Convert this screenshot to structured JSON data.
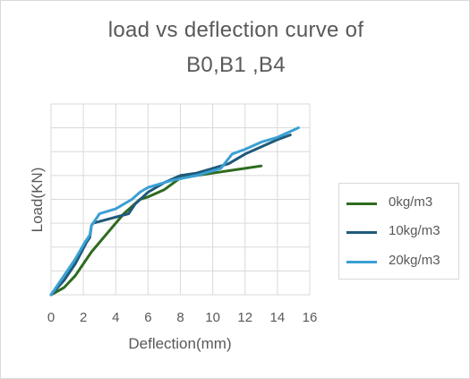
{
  "chart_data": {
    "type": "line",
    "title_line1": "load vs deflection curve of",
    "title_line2": "B0,B1 ,B4",
    "xlabel": "Deflection(mm)",
    "ylabel": "Load(KN)",
    "xlim": [
      0,
      16
    ],
    "x_ticks": [
      "0",
      "2",
      "4",
      "6",
      "8",
      "10",
      "12",
      "14",
      "16"
    ],
    "ylim": [
      0,
      80
    ],
    "y_grid_step": 10,
    "y_tick_labels_shown": false,
    "grid": true,
    "legend_position": "right",
    "series": [
      {
        "name": "0kg/m3",
        "color": "#2e6b1f",
        "points": [
          [
            0,
            0
          ],
          [
            0.8,
            3
          ],
          [
            1.5,
            8
          ],
          [
            2.5,
            18
          ],
          [
            3.5,
            26
          ],
          [
            4.5,
            34
          ],
          [
            5.5,
            40
          ],
          [
            6,
            41
          ],
          [
            7,
            44
          ],
          [
            8,
            49
          ],
          [
            9,
            50
          ],
          [
            10,
            51
          ],
          [
            11,
            52
          ],
          [
            12,
            53
          ],
          [
            13,
            54
          ]
        ]
      },
      {
        "name": "10kg/m3",
        "color": "#1f5a7a",
        "points": [
          [
            0,
            0
          ],
          [
            0.8,
            6
          ],
          [
            1.5,
            13
          ],
          [
            2.2,
            22
          ],
          [
            2.4,
            24
          ],
          [
            2.5,
            29
          ],
          [
            2.6,
            30
          ],
          [
            4.8,
            34
          ],
          [
            5.2,
            38
          ],
          [
            6,
            43
          ],
          [
            7,
            47
          ],
          [
            8,
            50
          ],
          [
            9,
            51
          ],
          [
            10,
            53
          ],
          [
            11,
            55
          ],
          [
            12,
            59
          ],
          [
            13,
            62
          ],
          [
            14,
            65
          ],
          [
            14.8,
            67
          ]
        ]
      },
      {
        "name": "20kg/m3",
        "color": "#3aa0d4",
        "points": [
          [
            0,
            0
          ],
          [
            0.8,
            8
          ],
          [
            1.5,
            15
          ],
          [
            2.1,
            22
          ],
          [
            2.4,
            25
          ],
          [
            2.5,
            29
          ],
          [
            3,
            34
          ],
          [
            4,
            36
          ],
          [
            5,
            40
          ],
          [
            5.5,
            43
          ],
          [
            6,
            45
          ],
          [
            7.5,
            48
          ],
          [
            9,
            50
          ],
          [
            10.5,
            53
          ],
          [
            11.2,
            59
          ],
          [
            12,
            61
          ],
          [
            13,
            64
          ],
          [
            14,
            66
          ],
          [
            15.3,
            70
          ]
        ]
      }
    ]
  }
}
